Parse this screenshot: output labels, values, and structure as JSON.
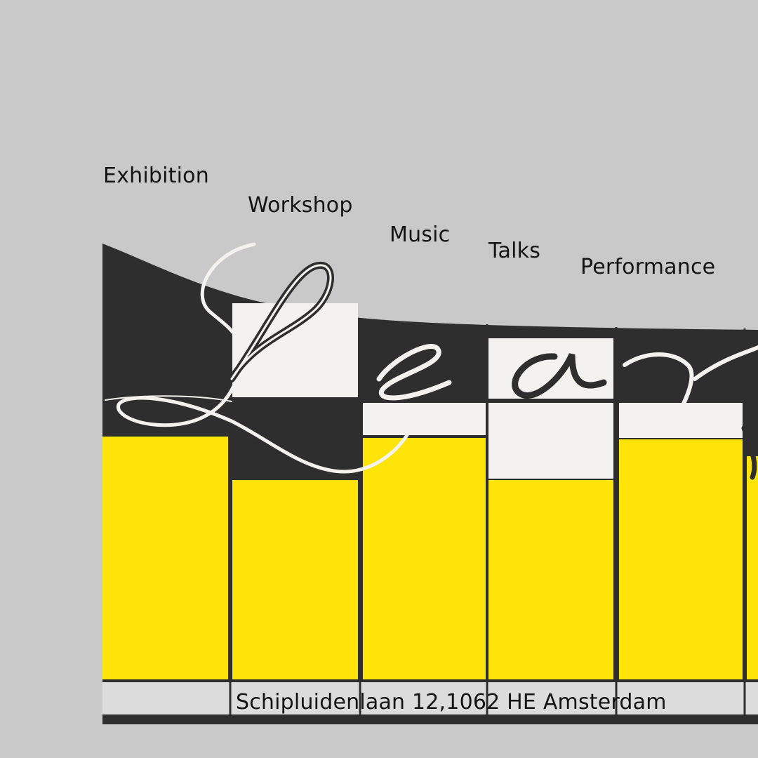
{
  "categories": [
    {
      "id": "exhibition",
      "label": "Exhibition"
    },
    {
      "id": "workshop",
      "label": "Workshop"
    },
    {
      "id": "music",
      "label": "Music"
    },
    {
      "id": "talks",
      "label": "Talks"
    },
    {
      "id": "performance",
      "label": "Performance"
    }
  ],
  "address": "Schipluidenlaan 12,1062 HE Amsterdam",
  "colors": {
    "background": "#c9c9c9",
    "ink": "#2e2e2e",
    "paper": "#f3f2ee",
    "accent_yellow": "#ffe40a"
  },
  "script_lettering": "Le av"
}
